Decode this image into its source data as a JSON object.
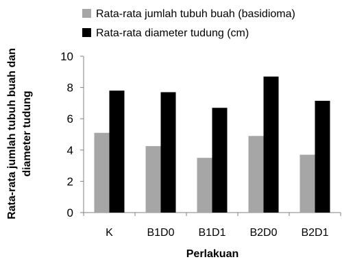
{
  "chart_data": {
    "type": "bar",
    "title": "",
    "xlabel": "Perlakuan",
    "ylabel": "Rata-rata jumlah tubuh buah dan diameter tudung",
    "ylabel_lines": [
      "Rata-rata jumlah tubuh buah dan",
      "diameter tudung"
    ],
    "categories": [
      "K",
      "B1D0",
      "B1D1",
      "B2D0",
      "B2D1"
    ],
    "series": [
      {
        "name": "Rata-rata jumlah tubuh buah (basidioma)",
        "color": "#a6a6a6",
        "values": [
          5.1,
          4.25,
          3.5,
          4.9,
          3.7
        ]
      },
      {
        "name": "Rata-rata diameter tudung (cm)",
        "color": "#000000",
        "values": [
          7.8,
          7.7,
          6.7,
          8.7,
          7.15
        ]
      }
    ],
    "ylim": [
      0,
      10
    ],
    "yticks": [
      0,
      2,
      4,
      6,
      8,
      10
    ],
    "grid": false,
    "legend_position": "top"
  }
}
